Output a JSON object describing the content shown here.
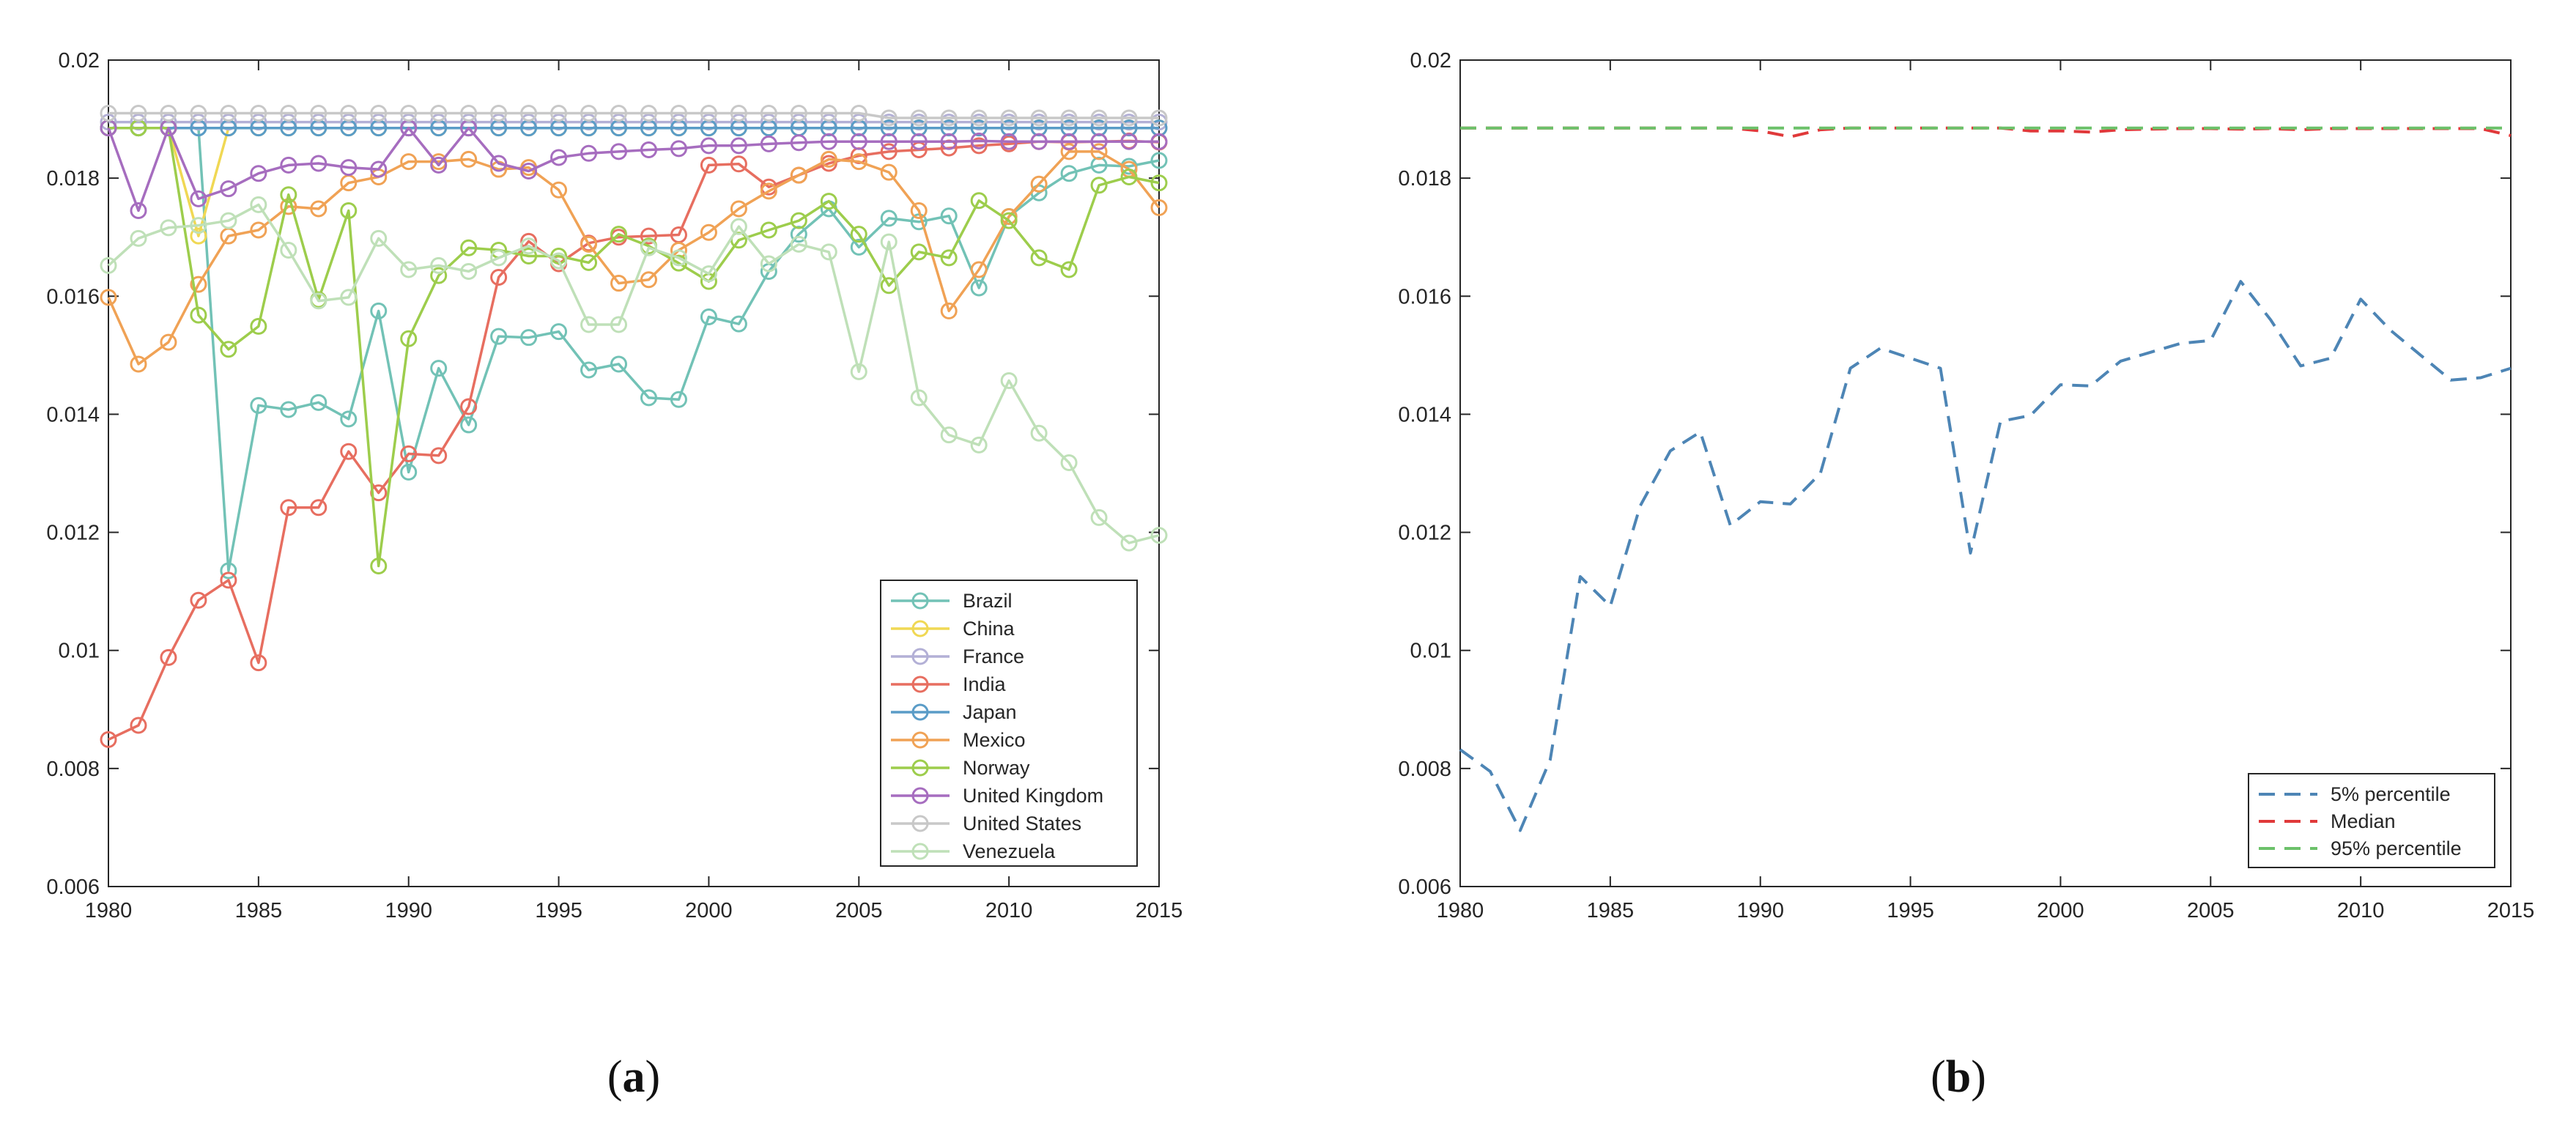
{
  "chart_data": [
    {
      "type": "line",
      "panel": "(a)",
      "panel_parts": {
        "open": "(",
        "letter": "a",
        "close": ")"
      },
      "x": [
        1980,
        1981,
        1982,
        1983,
        1984,
        1985,
        1986,
        1987,
        1988,
        1989,
        1990,
        1991,
        1992,
        1993,
        1994,
        1995,
        1996,
        1997,
        1998,
        1999,
        2000,
        2001,
        2002,
        2003,
        2004,
        2005,
        2006,
        2007,
        2008,
        2009,
        2010,
        2011,
        2012,
        2013,
        2014,
        2015
      ],
      "xlim": [
        1980,
        2015
      ],
      "ylim": [
        0.006,
        0.02
      ],
      "xticks": [
        "1980",
        "1985",
        "1990",
        "1995",
        "2000",
        "2005",
        "2010",
        "2015"
      ],
      "yticks": [
        "0.006",
        "0.008",
        "0.01",
        "0.012",
        "0.014",
        "0.016",
        "0.018",
        "0.02"
      ],
      "markers": "circle",
      "legend_position": "bottom-right",
      "series": [
        {
          "name": "Brazil",
          "color": "#72c2b6",
          "values": [
            0.01885,
            0.01885,
            0.01885,
            0.01885,
            0.01135,
            0.01415,
            0.01408,
            0.0142,
            0.01392,
            0.01575,
            0.01302,
            0.01478,
            0.01382,
            0.01532,
            0.0153,
            0.0154,
            0.01475,
            0.01485,
            0.01428,
            0.01425,
            0.01565,
            0.01553,
            0.01642,
            0.01705,
            0.01748,
            0.01683,
            0.01732,
            0.01726,
            0.01736,
            0.01614,
            0.01735,
            0.01775,
            0.01808,
            0.01822,
            0.0182,
            0.0183
          ]
        },
        {
          "name": "China",
          "color": "#f0d854",
          "values": [
            0.01885,
            0.01885,
            0.01885,
            0.01702,
            0.01885,
            0.01885,
            0.01885,
            0.01885,
            0.01885,
            0.01885,
            0.01885,
            0.01885,
            0.01885,
            0.01885,
            0.01885,
            0.01885,
            0.01885,
            0.01885,
            0.01885,
            0.01885,
            0.01885,
            0.01885,
            0.01885,
            0.01885,
            0.01885,
            0.01885,
            0.01885,
            0.01885,
            0.01885,
            0.01885,
            0.01885,
            0.01885,
            0.01885,
            0.01885,
            0.01885,
            0.01885
          ]
        },
        {
          "name": "France",
          "color": "#b3b0d6",
          "values": [
            0.01895,
            0.01895,
            0.01895,
            0.01895,
            0.01895,
            0.01895,
            0.01895,
            0.01895,
            0.01895,
            0.01895,
            0.01895,
            0.01895,
            0.01895,
            0.01895,
            0.01895,
            0.01895,
            0.01895,
            0.01895,
            0.01895,
            0.01895,
            0.01895,
            0.01895,
            0.01895,
            0.01895,
            0.01895,
            0.01895,
            0.01895,
            0.01895,
            0.01895,
            0.01895,
            0.01895,
            0.01895,
            0.01895,
            0.01895,
            0.01895,
            0.01895
          ]
        },
        {
          "name": "India",
          "color": "#e76e60",
          "values": [
            0.00849,
            0.00873,
            0.00988,
            0.01085,
            0.01119,
            0.00979,
            0.01242,
            0.01242,
            0.01337,
            0.01267,
            0.01333,
            0.0133,
            0.01413,
            0.01632,
            0.01693,
            0.01655,
            0.0169,
            0.017,
            0.01702,
            0.01704,
            0.01822,
            0.01824,
            0.01785,
            0.01805,
            0.01825,
            0.01838,
            0.01845,
            0.01848,
            0.01851,
            0.01855,
            0.01858,
            0.01862,
            0.01861,
            0.01862,
            0.01863,
            0.01861
          ]
        },
        {
          "name": "Japan",
          "color": "#5a9cc7",
          "values": [
            0.01885,
            0.01885,
            0.01885,
            0.01885,
            0.01885,
            0.01885,
            0.01885,
            0.01885,
            0.01885,
            0.01885,
            0.01885,
            0.01885,
            0.01885,
            0.01885,
            0.01885,
            0.01885,
            0.01885,
            0.01885,
            0.01885,
            0.01885,
            0.01885,
            0.01885,
            0.01885,
            0.01885,
            0.01885,
            0.01885,
            0.01885,
            0.01885,
            0.01885,
            0.01885,
            0.01885,
            0.01885,
            0.01885,
            0.01885,
            0.01885,
            0.01885
          ]
        },
        {
          "name": "Mexico",
          "color": "#f0a255",
          "values": [
            0.01598,
            0.01485,
            0.01522,
            0.0162,
            0.01702,
            0.01712,
            0.01752,
            0.01748,
            0.01792,
            0.01802,
            0.01828,
            0.01828,
            0.01832,
            0.01815,
            0.01818,
            0.0178,
            0.01688,
            0.01622,
            0.01628,
            0.01678,
            0.01708,
            0.01748,
            0.01778,
            0.01805,
            0.01832,
            0.01828,
            0.0181,
            0.01745,
            0.01575,
            0.01645,
            0.01735,
            0.0179,
            0.01845,
            0.01845,
            0.01815,
            0.0175
          ]
        },
        {
          "name": "Norway",
          "color": "#9dcd4c",
          "values": [
            0.01885,
            0.01885,
            0.01885,
            0.01568,
            0.0151,
            0.01549,
            0.01772,
            0.01594,
            0.01745,
            0.01143,
            0.01528,
            0.01635,
            0.01682,
            0.01678,
            0.01668,
            0.01668,
            0.01657,
            0.01705,
            0.01685,
            0.01656,
            0.01625,
            0.01695,
            0.01712,
            0.01728,
            0.01761,
            0.01705,
            0.01618,
            0.01675,
            0.01665,
            0.01762,
            0.01728,
            0.01665,
            0.01645,
            0.01788,
            0.01802,
            0.01792
          ]
        },
        {
          "name": "United Kingdom",
          "color": "#a66dbf",
          "values": [
            0.01885,
            0.01745,
            0.01885,
            0.01765,
            0.01782,
            0.01808,
            0.01822,
            0.01825,
            0.01818,
            0.01815,
            0.01885,
            0.01822,
            0.01885,
            0.01825,
            0.01812,
            0.01835,
            0.01842,
            0.01845,
            0.01848,
            0.0185,
            0.01855,
            0.01855,
            0.01858,
            0.0186,
            0.01862,
            0.01862,
            0.01862,
            0.01862,
            0.01862,
            0.01863,
            0.01862,
            0.01862,
            0.01862,
            0.01862,
            0.01862,
            0.01862
          ]
        },
        {
          "name": "United States",
          "color": "#c8c8c8",
          "values": [
            0.0191,
            0.0191,
            0.0191,
            0.0191,
            0.0191,
            0.0191,
            0.0191,
            0.0191,
            0.0191,
            0.0191,
            0.0191,
            0.0191,
            0.0191,
            0.0191,
            0.0191,
            0.0191,
            0.0191,
            0.0191,
            0.0191,
            0.0191,
            0.0191,
            0.0191,
            0.0191,
            0.0191,
            0.0191,
            0.0191,
            0.01902,
            0.01902,
            0.01902,
            0.01902,
            0.01902,
            0.01902,
            0.01902,
            0.01902,
            0.01902,
            0.01902
          ]
        },
        {
          "name": "Venezuela",
          "color": "#bfe0b8",
          "values": [
            0.01652,
            0.01698,
            0.01716,
            0.0172,
            0.01728,
            0.01755,
            0.01678,
            0.01592,
            0.01598,
            0.01698,
            0.01645,
            0.01652,
            0.01642,
            0.01665,
            0.01685,
            0.0166,
            0.01552,
            0.01552,
            0.01682,
            0.01665,
            0.01638,
            0.01718,
            0.01655,
            0.01688,
            0.01675,
            0.01472,
            0.01692,
            0.01428,
            0.01365,
            0.01348,
            0.01457,
            0.01368,
            0.01318,
            0.01225,
            0.01182,
            0.01195
          ]
        }
      ]
    },
    {
      "type": "line",
      "panel": "(b)",
      "panel_parts": {
        "open": "(",
        "letter": "b",
        "close": ")"
      },
      "x": [
        1980,
        1981,
        1982,
        1983,
        1984,
        1985,
        1986,
        1987,
        1988,
        1989,
        1990,
        1991,
        1992,
        1993,
        1994,
        1995,
        1996,
        1997,
        1998,
        1999,
        2000,
        2001,
        2002,
        2003,
        2004,
        2005,
        2006,
        2007,
        2008,
        2009,
        2010,
        2011,
        2012,
        2013,
        2014,
        2015
      ],
      "xlim": [
        1980,
        2015
      ],
      "ylim": [
        0.006,
        0.02
      ],
      "xticks": [
        "1980",
        "1985",
        "1990",
        "1995",
        "2000",
        "2005",
        "2010",
        "2015"
      ],
      "yticks": [
        "0.006",
        "0.008",
        "0.01",
        "0.012",
        "0.014",
        "0.016",
        "0.018",
        "0.02"
      ],
      "line_style": "dashed",
      "legend_position": "bottom-right",
      "series": [
        {
          "name": "5% percentile",
          "color": "#4d85b5",
          "values": [
            0.00832,
            0.00795,
            0.00695,
            0.00815,
            0.01125,
            0.01075,
            0.01245,
            0.01338,
            0.0137,
            0.01212,
            0.01252,
            0.01248,
            0.013,
            0.01478,
            0.01512,
            0.01495,
            0.01478,
            0.01165,
            0.01388,
            0.01398,
            0.0145,
            0.01448,
            0.0149,
            0.01505,
            0.0152,
            0.01525,
            0.01625,
            0.0156,
            0.01482,
            0.01495,
            0.01595,
            0.01542,
            0.015,
            0.01458,
            0.01462,
            0.01478
          ]
        },
        {
          "name": "Median",
          "color": "#e0393a",
          "values": [
            0.01885,
            0.01885,
            0.01885,
            0.01885,
            0.01885,
            0.01885,
            0.01885,
            0.01885,
            0.01885,
            0.01885,
            0.0188,
            0.0187,
            0.01882,
            0.01885,
            0.01885,
            0.01885,
            0.01885,
            0.01885,
            0.01885,
            0.0188,
            0.0188,
            0.01878,
            0.01882,
            0.01883,
            0.01884,
            0.01884,
            0.01883,
            0.01884,
            0.01882,
            0.01884,
            0.01884,
            0.01884,
            0.01884,
            0.01884,
            0.01884,
            0.01872
          ]
        },
        {
          "name": "95% percentile",
          "color": "#6cc16a",
          "values": [
            0.01885,
            0.01885,
            0.01885,
            0.01885,
            0.01885,
            0.01885,
            0.01885,
            0.01885,
            0.01885,
            0.01885,
            0.01885,
            0.01885,
            0.01885,
            0.01885,
            0.01885,
            0.01885,
            0.01885,
            0.01885,
            0.01885,
            0.01885,
            0.01885,
            0.01885,
            0.01885,
            0.01885,
            0.01885,
            0.01885,
            0.01885,
            0.01885,
            0.01885,
            0.01885,
            0.01885,
            0.01885,
            0.01885,
            0.01885,
            0.01885,
            0.01885
          ]
        }
      ]
    }
  ]
}
